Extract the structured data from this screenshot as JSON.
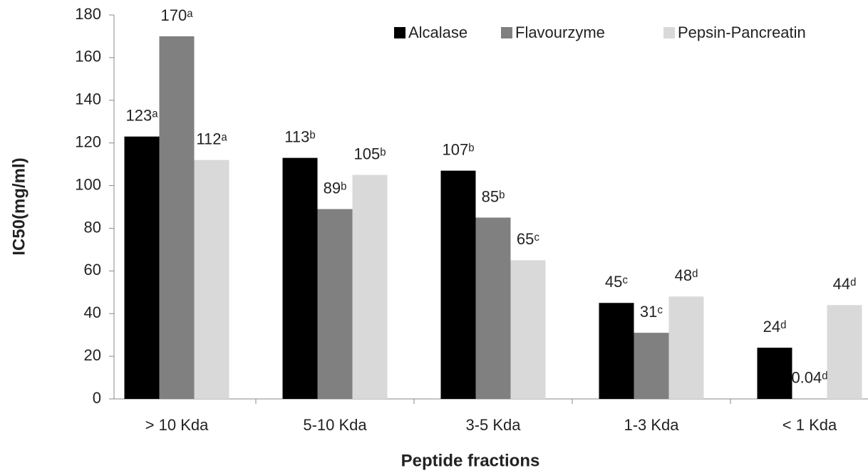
{
  "chart_data": {
    "type": "bar",
    "x_label": "Peptide fractions",
    "y_label": "IC50(mg/ml)",
    "categories": [
      "> 10 Kda",
      "5-10 Kda",
      "3-5 Kda",
      "1-3 Kda",
      "< 1 Kda"
    ],
    "series": [
      {
        "name": "Alcalase",
        "color": "#000000",
        "values": [
          123,
          113,
          107,
          45,
          24
        ],
        "value_labels": [
          "123ᵃ",
          "113ᵇ",
          "107ᵇ",
          "45ᶜ",
          "24ᵈ"
        ]
      },
      {
        "name": "Flavourzyme",
        "color": "#808080",
        "values": [
          170,
          89,
          85,
          31,
          0.04
        ],
        "value_labels": [
          "170ᵃ",
          "89ᵇ",
          "85ᵇ",
          "31ᶜ",
          "0.04ᵈ"
        ]
      },
      {
        "name": "Pepsin-Pancreatin",
        "color": "#d9d9d9",
        "values": [
          112,
          105,
          65,
          48,
          44
        ],
        "value_labels": [
          "112ᵃ",
          "105ᵇ",
          "65ᶜ",
          "48ᵈ",
          "44ᵈ"
        ]
      }
    ],
    "ylim": [
      0,
      180
    ],
    "yticks": [
      0,
      20,
      40,
      60,
      80,
      100,
      120,
      140,
      160,
      180
    ],
    "legend": "top-right"
  }
}
